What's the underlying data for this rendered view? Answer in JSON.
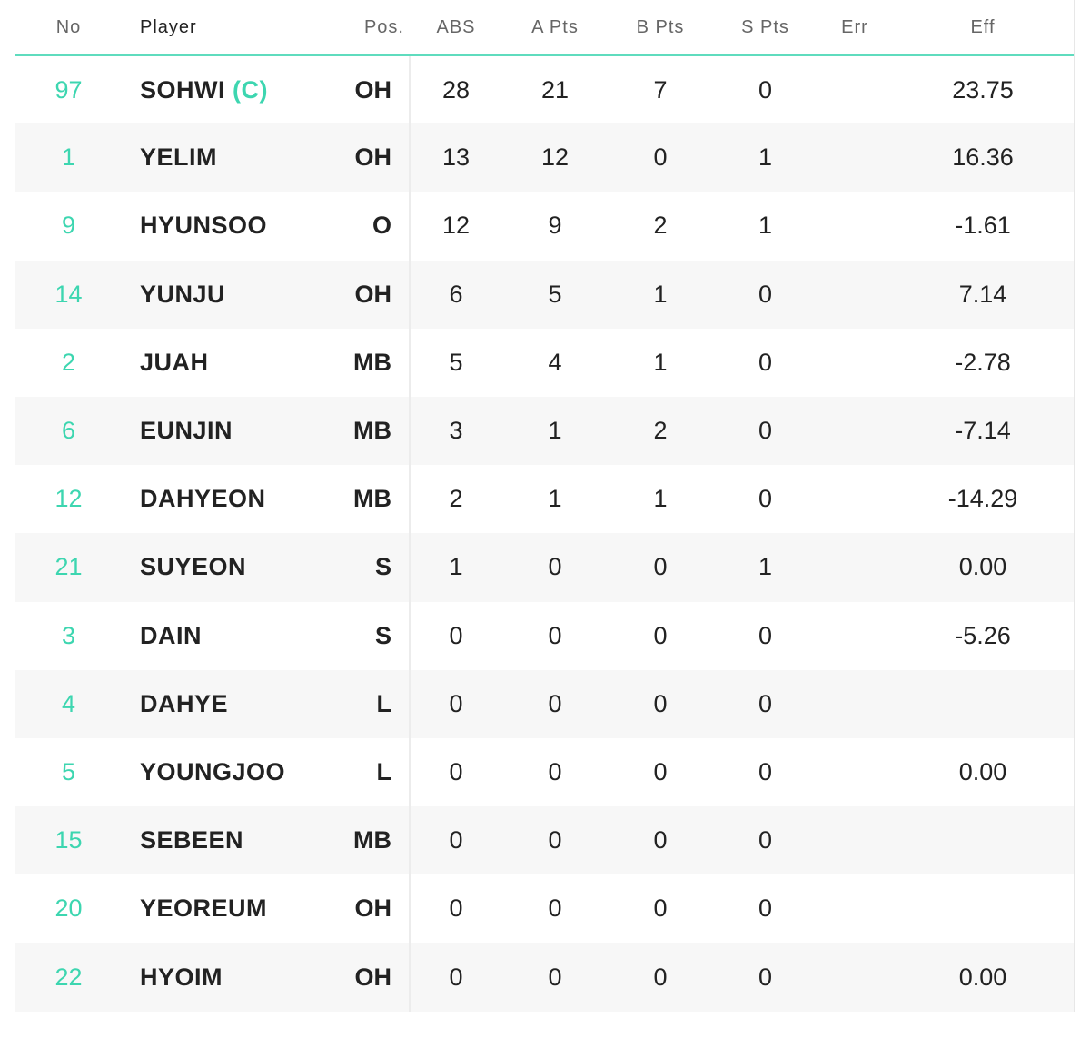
{
  "columns": {
    "no": "No",
    "player": "Player",
    "pos": "Pos.",
    "abs": "ABS",
    "a_pts": "A Pts",
    "b_pts": "B Pts",
    "s_pts": "S Pts",
    "err": "Err",
    "eff": "Eff"
  },
  "colors": {
    "accent": "#3dd6b0",
    "header_rule": "#5fdcbe",
    "row_alt": "#f7f7f7"
  },
  "rows": [
    {
      "no": "97",
      "player": "SOHWI",
      "captain": "(C)",
      "pos": "OH",
      "abs": "28",
      "a_pts": "21",
      "b_pts": "7",
      "s_pts": "0",
      "err": "",
      "eff": "23.75"
    },
    {
      "no": "1",
      "player": "YELIM",
      "pos": "OH",
      "abs": "13",
      "a_pts": "12",
      "b_pts": "0",
      "s_pts": "1",
      "err": "",
      "eff": "16.36"
    },
    {
      "no": "9",
      "player": "HYUNSOO",
      "pos": "O",
      "abs": "12",
      "a_pts": "9",
      "b_pts": "2",
      "s_pts": "1",
      "err": "",
      "eff": "-1.61"
    },
    {
      "no": "14",
      "player": "YUNJU",
      "pos": "OH",
      "abs": "6",
      "a_pts": "5",
      "b_pts": "1",
      "s_pts": "0",
      "err": "",
      "eff": "7.14"
    },
    {
      "no": "2",
      "player": "JUAH",
      "pos": "MB",
      "abs": "5",
      "a_pts": "4",
      "b_pts": "1",
      "s_pts": "0",
      "err": "",
      "eff": "-2.78"
    },
    {
      "no": "6",
      "player": "EUNJIN",
      "pos": "MB",
      "abs": "3",
      "a_pts": "1",
      "b_pts": "2",
      "s_pts": "0",
      "err": "",
      "eff": "-7.14"
    },
    {
      "no": "12",
      "player": "DAHYEON",
      "pos": "MB",
      "abs": "2",
      "a_pts": "1",
      "b_pts": "1",
      "s_pts": "0",
      "err": "",
      "eff": "-14.29"
    },
    {
      "no": "21",
      "player": "SUYEON",
      "pos": "S",
      "abs": "1",
      "a_pts": "0",
      "b_pts": "0",
      "s_pts": "1",
      "err": "",
      "eff": "0.00"
    },
    {
      "no": "3",
      "player": "DAIN",
      "pos": "S",
      "abs": "0",
      "a_pts": "0",
      "b_pts": "0",
      "s_pts": "0",
      "err": "",
      "eff": "-5.26"
    },
    {
      "no": "4",
      "player": "DAHYE",
      "pos": "L",
      "abs": "0",
      "a_pts": "0",
      "b_pts": "0",
      "s_pts": "0",
      "err": "",
      "eff": ""
    },
    {
      "no": "5",
      "player": "YOUNGJOO",
      "pos": "L",
      "abs": "0",
      "a_pts": "0",
      "b_pts": "0",
      "s_pts": "0",
      "err": "",
      "eff": "0.00"
    },
    {
      "no": "15",
      "player": "SEBEEN",
      "pos": "MB",
      "abs": "0",
      "a_pts": "0",
      "b_pts": "0",
      "s_pts": "0",
      "err": "",
      "eff": ""
    },
    {
      "no": "20",
      "player": "YEOREUM",
      "pos": "OH",
      "abs": "0",
      "a_pts": "0",
      "b_pts": "0",
      "s_pts": "0",
      "err": "",
      "eff": ""
    },
    {
      "no": "22",
      "player": "HYOIM",
      "pos": "OH",
      "abs": "0",
      "a_pts": "0",
      "b_pts": "0",
      "s_pts": "0",
      "err": "",
      "eff": "0.00"
    }
  ]
}
